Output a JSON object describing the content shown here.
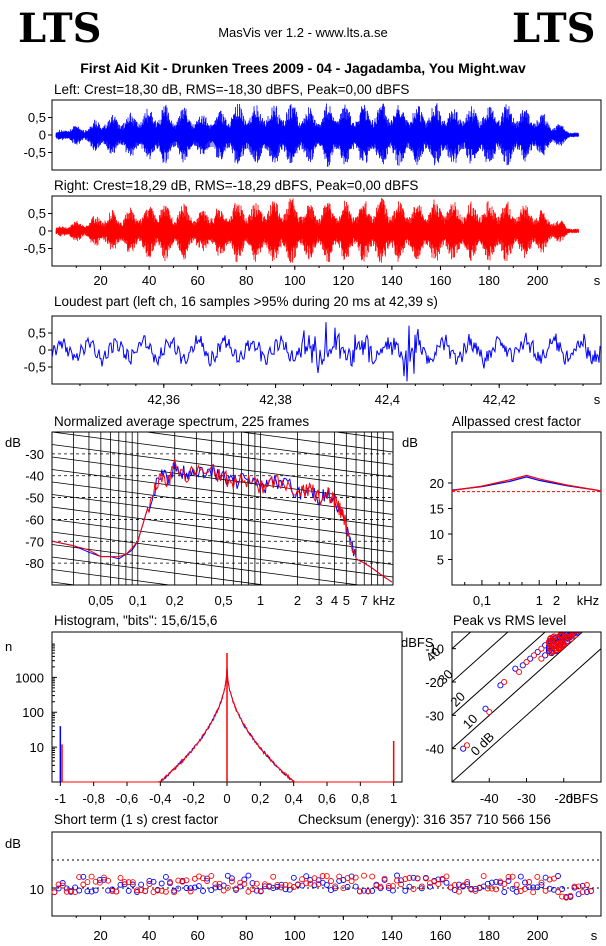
{
  "header": {
    "logo_left": "LTS",
    "logo_right": "LTS",
    "app": "MasVis ver 1.2 - www.lts.a.se",
    "file_title": "First Aid Kit - Drunken Trees 2009 - 04 - Jagadamba, You Might.wav"
  },
  "colors": {
    "left": "#0000ff",
    "right": "#ff0000",
    "axes": "#000000"
  },
  "panels": {
    "left": {
      "title": "Left: Crest=18,30 dB, RMS=-18,30 dBFS, Peak=0,00 dBFS"
    },
    "right": {
      "title": "Right: Crest=18,29 dB, RMS=-18,29 dBFS, Peak=0,00 dBFS"
    },
    "loud": {
      "title": "Loudest part (left  ch, 16 samples >95% during 20 ms at 42,39 s)"
    },
    "spectrum": {
      "title": "Normalized average spectrum, 225 frames"
    },
    "apcrest": {
      "title": "Allpassed crest factor"
    },
    "hist": {
      "title": "Histogram, \"bits\": 15,6/15,6"
    },
    "pvr": {
      "title": "Peak vs RMS level"
    },
    "st": {
      "title": "Short term (1 s) crest factor",
      "checksum": "Checksum (energy):   316 357 710 566 156"
    }
  },
  "chart_data": [
    {
      "type": "area",
      "title": "Left: Crest=18,30 dB, RMS=-18,30 dBFS, Peak=0,00 dBFS",
      "series": [
        {
          "name": "Left",
          "color": "#0000ff"
        }
      ],
      "ylim": [
        -1,
        1
      ],
      "xlim": [
        0,
        222
      ],
      "yticks": [
        {
          "v": 0.5,
          "label": "0,5"
        },
        {
          "v": 0,
          "label": "0"
        },
        {
          "v": -0.5,
          "label": "-0,5"
        }
      ],
      "envelope": [
        0.1,
        0.25,
        0.3,
        0.3,
        0.45,
        0.6,
        0.6,
        0.65,
        0.7,
        0.75,
        0.85,
        0.95,
        0.7,
        0.85,
        0.75,
        0.55,
        0.8,
        0.75,
        0.9,
        0.95,
        0.85,
        0.9,
        0.95,
        0.95,
        1.0,
        0.95,
        0.85,
        0.75,
        0.95,
        0.9,
        0.9,
        0.85,
        0.95,
        1.0,
        0.95,
        0.95,
        0.9,
        0.9,
        0.85,
        0.95,
        0.95,
        0.9,
        0.9,
        0.85,
        0.95,
        0.9,
        0.95,
        0.9,
        0.85,
        0.8,
        0.7,
        0.5,
        0.35,
        0.15,
        0.05
      ]
    },
    {
      "type": "area",
      "title": "Right: Crest=18,29 dB, RMS=-18,29 dBFS, Peak=0,00 dBFS",
      "series": [
        {
          "name": "Right",
          "color": "#ff0000"
        }
      ],
      "ylim": [
        -1,
        1
      ],
      "xlim": [
        0,
        222
      ],
      "yticks": [
        {
          "v": 0.5,
          "label": "0,5"
        },
        {
          "v": 0,
          "label": "0"
        },
        {
          "v": -0.5,
          "label": "-0,5"
        }
      ],
      "xticks": [
        {
          "v": 20,
          "label": "20"
        },
        {
          "v": 40,
          "label": "40"
        },
        {
          "v": 60,
          "label": "60"
        },
        {
          "v": 80,
          "label": "80"
        },
        {
          "v": 100,
          "label": "100"
        },
        {
          "v": 120,
          "label": "120"
        },
        {
          "v": 140,
          "label": "140"
        },
        {
          "v": 160,
          "label": "160"
        },
        {
          "v": 180,
          "label": "180"
        },
        {
          "v": 200,
          "label": "200"
        }
      ],
      "xunit": "s",
      "envelope": [
        0.1,
        0.25,
        0.3,
        0.3,
        0.45,
        0.6,
        0.6,
        0.65,
        0.7,
        0.75,
        0.85,
        0.95,
        0.7,
        0.85,
        0.75,
        0.55,
        0.8,
        0.75,
        0.9,
        0.95,
        0.85,
        0.9,
        0.95,
        0.95,
        1.0,
        0.95,
        0.85,
        0.75,
        0.95,
        0.9,
        0.9,
        0.85,
        0.95,
        1.0,
        0.95,
        0.95,
        0.9,
        0.9,
        0.85,
        0.95,
        0.95,
        0.9,
        0.9,
        0.85,
        0.95,
        0.9,
        0.95,
        0.9,
        0.85,
        0.8,
        0.7,
        0.5,
        0.35,
        0.15,
        0.05
      ]
    },
    {
      "type": "line",
      "title": "Loudest part (left  ch, 16 samples >95% during 20 ms at 42,39 s)",
      "series": [
        {
          "name": "Left",
          "color": "#0000ff"
        }
      ],
      "xlim": [
        42.34,
        42.44
      ],
      "ylim": [
        -1,
        1
      ],
      "yticks": [
        {
          "v": 0.5,
          "label": "0,5"
        },
        {
          "v": 0,
          "label": "0"
        },
        {
          "v": -0.5,
          "label": "-0,5"
        }
      ],
      "xticks": [
        {
          "v": 42.36,
          "label": "42,36"
        },
        {
          "v": 42.38,
          "label": "42,38"
        },
        {
          "v": 42.4,
          "label": "42,4"
        },
        {
          "v": 42.42,
          "label": "42,42"
        }
      ],
      "xunit": "s"
    },
    {
      "type": "line",
      "title": "Normalized average spectrum, 225 frames",
      "ylabel": "dB",
      "xunit": "kHz",
      "xscale": "log",
      "xlim": [
        0.02,
        12
      ],
      "ylim": [
        -90,
        -20
      ],
      "yticks": [
        {
          "v": -30,
          "label": "-30"
        },
        {
          "v": -40,
          "label": "-40"
        },
        {
          "v": -50,
          "label": "-50"
        },
        {
          "v": -60,
          "label": "-60"
        },
        {
          "v": -70,
          "label": "-70"
        },
        {
          "v": -80,
          "label": "-80"
        }
      ],
      "xticks": [
        {
          "v": 0.05,
          "label": "0,05"
        },
        {
          "v": 0.1,
          "label": "0,1"
        },
        {
          "v": 0.2,
          "label": "0,2"
        },
        {
          "v": 0.5,
          "label": "0,5"
        },
        {
          "v": 1,
          "label": "1"
        },
        {
          "v": 2,
          "label": "2"
        },
        {
          "v": 3,
          "label": "3"
        },
        {
          "v": 4,
          "label": "4"
        },
        {
          "v": 5,
          "label": "5"
        },
        {
          "v": 7,
          "label": "7"
        }
      ],
      "series": [
        {
          "name": "Left",
          "color": "#0000ff",
          "x": [
            0.02,
            0.03,
            0.04,
            0.05,
            0.06,
            0.07,
            0.08,
            0.09,
            0.1,
            0.12,
            0.15,
            0.18,
            0.2,
            0.25,
            0.3,
            0.4,
            0.5,
            0.6,
            0.8,
            1,
            1.2,
            1.5,
            2,
            2.5,
            3,
            3.5,
            4,
            4.5,
            5,
            6,
            7,
            8,
            10,
            12
          ],
          "y": [
            -70,
            -72,
            -75,
            -77,
            -77,
            -78,
            -76,
            -74,
            -70,
            -55,
            -40,
            -42,
            -35,
            -40,
            -37,
            -38,
            -40,
            -43,
            -42,
            -45,
            -44,
            -42,
            -48,
            -46,
            -50,
            -48,
            -52,
            -56,
            -63,
            -78,
            -80,
            -82,
            -86,
            -89
          ]
        },
        {
          "name": "Right",
          "color": "#ff0000",
          "x": [
            0.02,
            0.03,
            0.04,
            0.05,
            0.06,
            0.07,
            0.08,
            0.09,
            0.1,
            0.12,
            0.15,
            0.18,
            0.2,
            0.25,
            0.3,
            0.4,
            0.5,
            0.6,
            0.8,
            1,
            1.2,
            1.5,
            2,
            2.5,
            3,
            3.5,
            4,
            4.5,
            5,
            6,
            7,
            8,
            10,
            12
          ],
          "y": [
            -70,
            -72,
            -74,
            -77,
            -77,
            -77,
            -76,
            -73,
            -70,
            -55,
            -41,
            -42,
            -35,
            -40,
            -37,
            -38,
            -41,
            -43,
            -42,
            -45,
            -44,
            -42,
            -48,
            -46,
            -50,
            -48,
            -52,
            -56,
            -63,
            -78,
            -80,
            -82,
            -86,
            -89
          ]
        }
      ]
    },
    {
      "type": "line",
      "title": "Allpassed crest factor",
      "ylabel": "dB",
      "xunit": "kHz",
      "xscale": "log",
      "xlim": [
        0.03,
        12
      ],
      "ylim": [
        0,
        30
      ],
      "yticks": [
        {
          "v": 20,
          "label": "20"
        },
        {
          "v": 15,
          "label": "15"
        },
        {
          "v": 10,
          "label": "10"
        },
        {
          "v": 5,
          "label": "5"
        }
      ],
      "xticks": [
        {
          "v": 0.1,
          "label": "0,1"
        },
        {
          "v": 1,
          "label": "1"
        },
        {
          "v": 2,
          "label": "2"
        }
      ],
      "reference": 18.3,
      "series": [
        {
          "name": "Left",
          "color": "#0000ff",
          "x": [
            0.03,
            0.1,
            0.3,
            0.6,
            1,
            3,
            10,
            12
          ],
          "y": [
            18.6,
            19.3,
            20.3,
            21.2,
            20.5,
            19.5,
            18.6,
            18.4
          ]
        },
        {
          "name": "Right",
          "color": "#ff0000",
          "x": [
            0.03,
            0.1,
            0.3,
            0.6,
            1,
            3,
            10,
            12
          ],
          "y": [
            18.5,
            19.4,
            20.6,
            21.5,
            20.8,
            19.6,
            18.6,
            18.4
          ]
        }
      ]
    },
    {
      "type": "line",
      "title": "Histogram, \"bits\": 15,6/15,6",
      "ylabel": "n",
      "yscale": "log",
      "xlim": [
        -1.05,
        1.05
      ],
      "ylim": [
        1,
        20000
      ],
      "yticks": [
        {
          "v": 1000,
          "label": "1000"
        },
        {
          "v": 100,
          "label": "100"
        },
        {
          "v": 10,
          "label": "10"
        }
      ],
      "xticks": [
        {
          "v": -1,
          "label": "-1"
        },
        {
          "v": -0.8,
          "label": "-0,8"
        },
        {
          "v": -0.6,
          "label": "-0,6"
        },
        {
          "v": -0.4,
          "label": "-0,4"
        },
        {
          "v": -0.2,
          "label": "-0,2"
        },
        {
          "v": 0,
          "label": "0"
        },
        {
          "v": 0.2,
          "label": "0,2"
        },
        {
          "v": 0.4,
          "label": "0,4"
        },
        {
          "v": 0.6,
          "label": "0,6"
        },
        {
          "v": 0.8,
          "label": "0,8"
        },
        {
          "v": 1,
          "label": "1"
        }
      ],
      "series": [
        {
          "name": "Left",
          "color": "#0000ff"
        },
        {
          "name": "Right",
          "color": "#ff0000"
        }
      ]
    },
    {
      "type": "scatter",
      "title": "Peak vs RMS level",
      "ylabel": "dBFS",
      "xunit": "dBFS",
      "xlim": [
        -50,
        -10
      ],
      "ylim": [
        -50,
        -5
      ],
      "yticks": [
        {
          "v": -10,
          "label": "-10"
        },
        {
          "v": -20,
          "label": "-20"
        },
        {
          "v": -30,
          "label": "-30"
        },
        {
          "v": -40,
          "label": "-40"
        }
      ],
      "xticks": [
        {
          "v": -40,
          "label": "-40"
        },
        {
          "v": -30,
          "label": "-30"
        },
        {
          "v": -20,
          "label": "-20"
        }
      ],
      "diagonals": [
        {
          "offset": 0,
          "label": "0 dB"
        },
        {
          "offset": 10,
          "label": "10"
        },
        {
          "offset": 20,
          "label": "20"
        },
        {
          "offset": 30,
          "label": "30"
        },
        {
          "offset": 40,
          "label": "40"
        }
      ],
      "series": [
        {
          "name": "Left",
          "color": "#0000ff",
          "points": [
            [
              -47,
              -40
            ],
            [
              -41,
              -28
            ],
            [
              -37,
              -21
            ],
            [
              -33,
              -16
            ],
            [
              -31,
              -15
            ],
            [
              -29,
              -13
            ],
            [
              -27,
              -11
            ],
            [
              -25,
              -9
            ],
            [
              -24,
              -10
            ],
            [
              -22,
              -8
            ],
            [
              -21,
              -7
            ],
            [
              -20,
              -6
            ],
            [
              -19,
              -7
            ],
            [
              -18,
              -6
            ],
            [
              -22,
              -9
            ],
            [
              -25,
              -12
            ]
          ]
        },
        {
          "name": "Right",
          "color": "#ff0000",
          "points": [
            [
              -46,
              -39
            ],
            [
              -40,
              -29
            ],
            [
              -36,
              -20
            ],
            [
              -32,
              -17
            ],
            [
              -30,
              -14
            ],
            [
              -28,
              -12
            ],
            [
              -26,
              -10
            ],
            [
              -24,
              -8
            ],
            [
              -23,
              -9
            ],
            [
              -21,
              -6
            ],
            [
              -20,
              -7
            ],
            [
              -19,
              -5
            ],
            [
              -18,
              -7
            ],
            [
              -17,
              -6
            ],
            [
              -23,
              -11
            ],
            [
              -26,
              -13
            ]
          ]
        }
      ]
    },
    {
      "type": "scatter",
      "title": "Short term (1 s) crest factor",
      "ylabel": "dB",
      "xunit": "s",
      "xlim": [
        0,
        222
      ],
      "ylim": [
        0,
        30
      ],
      "yticks": [
        {
          "v": 10,
          "label": "10"
        }
      ],
      "xticks": [
        {
          "v": 20,
          "label": "20"
        },
        {
          "v": 40,
          "label": "40"
        },
        {
          "v": 60,
          "label": "60"
        },
        {
          "v": 80,
          "label": "80"
        },
        {
          "v": 100,
          "label": "100"
        },
        {
          "v": 120,
          "label": "120"
        },
        {
          "v": 140,
          "label": "140"
        },
        {
          "v": 160,
          "label": "160"
        },
        {
          "v": 180,
          "label": "180"
        },
        {
          "v": 200,
          "label": "200"
        }
      ],
      "reference_lines": [
        20,
        10
      ],
      "series": [
        {
          "name": "Left",
          "color": "#0000ff"
        },
        {
          "name": "Right",
          "color": "#ff0000"
        }
      ]
    }
  ]
}
